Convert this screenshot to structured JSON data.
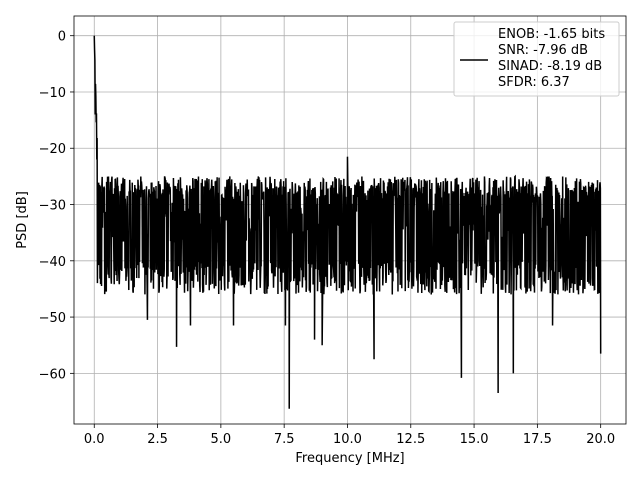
{
  "chart_data": {
    "type": "line",
    "title": "",
    "xlabel": "Frequency [MHz]",
    "ylabel": "PSD [dB]",
    "xlim": [
      -0.8,
      21.0
    ],
    "ylim": [
      -69.0,
      3.5
    ],
    "xticks": [
      0.0,
      2.5,
      5.0,
      7.5,
      10.0,
      12.5,
      15.0,
      17.5,
      20.0
    ],
    "xtick_labels": [
      "0.0",
      "2.5",
      "5.0",
      "7.5",
      "10.0",
      "12.5",
      "15.0",
      "17.5",
      "20.0"
    ],
    "yticks": [
      0,
      -10,
      -20,
      -30,
      -40,
      -50,
      -60
    ],
    "ytick_labels": [
      "0",
      "−10",
      "−20",
      "−30",
      "−40",
      "−50",
      "−60"
    ],
    "grid": true,
    "legend_position": "top-right",
    "legend_entries": [
      "ENOB: -1.65 bits",
      "SNR: -7.96 dB",
      "SINAD: -8.19 dB",
      "SFDR: 6.37"
    ],
    "series_color": "#000000",
    "series": [
      {
        "name": "ENOB: -1.65 bits\nSNR: -7.96 dB\nSINAD: -8.19 dB\nSFDR: 6.37",
        "x_range": [
          0.0,
          20.0
        ],
        "num_points": 1600,
        "notable_points": [
          {
            "x": 0.0,
            "y": 0.0
          },
          {
            "x": 0.04,
            "y": -14.0
          },
          {
            "x": 0.1,
            "y": -22.0
          },
          {
            "x": 0.5,
            "y": -41.0
          },
          {
            "x": 2.1,
            "y": -50.5
          },
          {
            "x": 3.25,
            "y": -55.3
          },
          {
            "x": 3.8,
            "y": -51.5
          },
          {
            "x": 5.5,
            "y": -51.5
          },
          {
            "x": 7.7,
            "y": -66.3
          },
          {
            "x": 7.55,
            "y": -51.5
          },
          {
            "x": 8.7,
            "y": -54.0
          },
          {
            "x": 9.0,
            "y": -55.0
          },
          {
            "x": 10.0,
            "y": -21.5
          },
          {
            "x": 11.05,
            "y": -57.5
          },
          {
            "x": 14.5,
            "y": -60.8
          },
          {
            "x": 15.95,
            "y": -63.5
          },
          {
            "x": 16.55,
            "y": -60.0
          },
          {
            "x": 18.1,
            "y": -51.5
          },
          {
            "x": 20.0,
            "y": -56.5
          }
        ],
        "noise_floor_mean": -32.0,
        "noise_upper_envelope": -24.0,
        "noise_lower_envelope": -46.0
      }
    ]
  }
}
